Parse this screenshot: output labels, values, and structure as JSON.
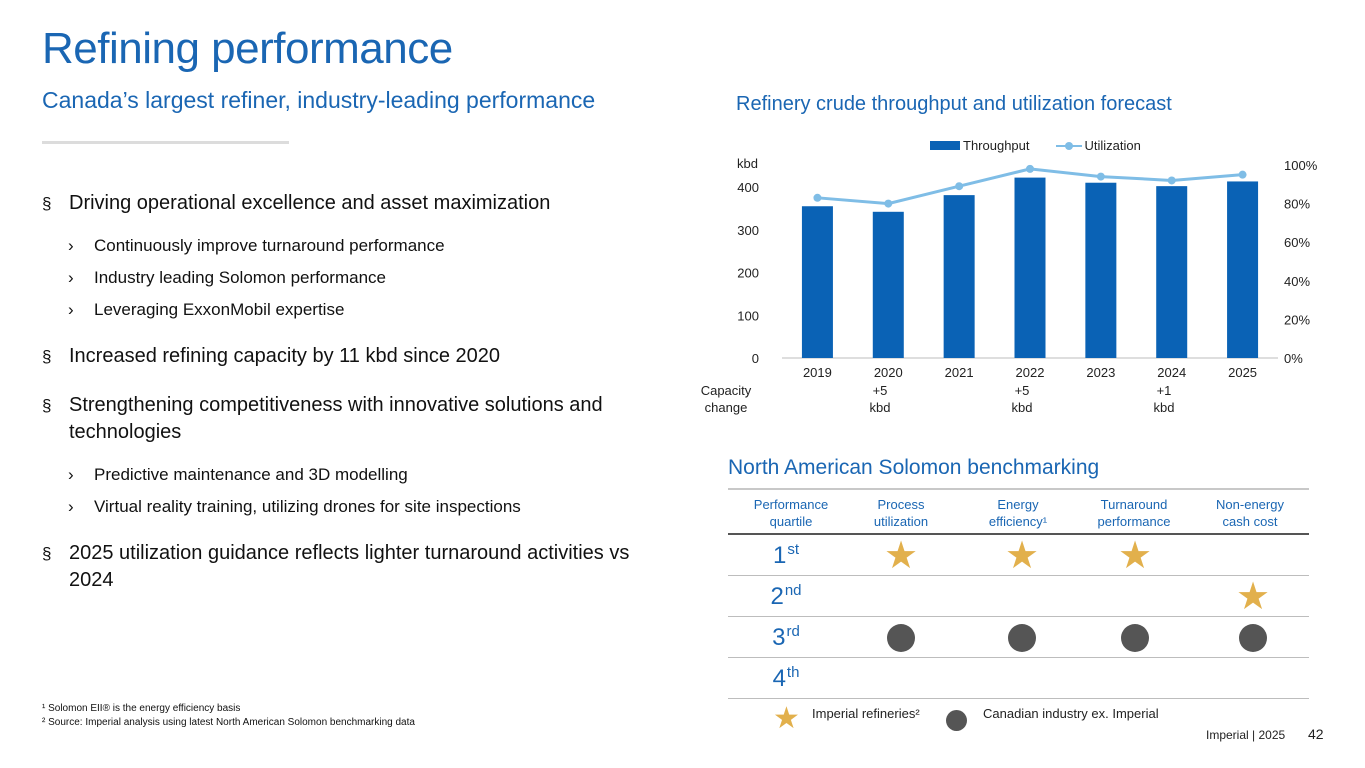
{
  "header": {
    "title": "Refining performance",
    "subtitle": "Canada’s largest refiner, industry-leading performance"
  },
  "bullets": [
    {
      "text": "Driving operational excellence and asset maximization",
      "subs": [
        "Continuously improve turnaround performance",
        "Industry leading Solomon performance",
        "Leveraging ExxonMobil expertise"
      ]
    },
    {
      "text": "Increased refining capacity by 11 kbd since 2020",
      "subs": []
    },
    {
      "text": "Strengthening competitiveness with innovative solutions and technologies",
      "subs": [
        "Predictive maintenance and 3D modelling",
        "Virtual reality training, utilizing drones for site inspections"
      ]
    },
    {
      "text": "2025 utilization guidance reflects lighter turnaround activities vs 2024",
      "subs": []
    }
  ],
  "bullet_mark": "§",
  "sub_mark": "›",
  "footnotes": {
    "f1": "¹ Solomon EII® is the energy efficiency basis",
    "f2": "² Source: Imperial analysis using latest North American Solomon benchmarking data"
  },
  "chart_data": {
    "type": "bar",
    "title": "Refinery crude throughput and utilization forecast",
    "categories": [
      "2019",
      "2020",
      "2021",
      "2022",
      "2023",
      "2024",
      "2025"
    ],
    "series": [
      {
        "name": "Throughput",
        "type": "bar",
        "axis": "left",
        "values": [
          355,
          342,
          381,
          422,
          410,
          402,
          413
        ]
      },
      {
        "name": "Utilization",
        "type": "line",
        "axis": "right",
        "values": [
          83,
          80,
          89,
          98,
          94,
          92,
          95
        ]
      }
    ],
    "ylabel": "kbd",
    "ylim": [
      0,
      400
    ],
    "yticks": [
      "0",
      "100",
      "200",
      "300",
      "400"
    ],
    "y2lim": [
      0,
      100
    ],
    "y2ticks": [
      "0%",
      "20%",
      "40%",
      "60%",
      "80%",
      "100%"
    ],
    "legend_position": "top",
    "capacity_label": [
      "Capacity",
      "change"
    ],
    "capacity_change": [
      [
        "",
        ""
      ],
      [
        "+5",
        "kbd"
      ],
      [
        "",
        ""
      ],
      [
        "+5",
        "kbd"
      ],
      [
        "",
        ""
      ],
      [
        "+1",
        "kbd"
      ],
      [
        "",
        ""
      ]
    ],
    "colors": {
      "bar": "#0a62b5",
      "line": "#7fbde6"
    }
  },
  "solomon": {
    "title": "North American Solomon benchmarking",
    "headers": [
      [
        "Performance",
        "quartile"
      ],
      [
        "Process",
        "utilization"
      ],
      [
        "Energy",
        "efficiency¹"
      ],
      [
        "Turnaround",
        "performance"
      ],
      [
        "Non-energy",
        "cash cost"
      ]
    ],
    "rows": [
      {
        "num": "1",
        "suffix": "st",
        "marks": [
          "star",
          "star",
          "star",
          ""
        ]
      },
      {
        "num": "2",
        "suffix": "nd",
        "marks": [
          "",
          "",
          "",
          "star"
        ]
      },
      {
        "num": "3",
        "suffix": "rd",
        "marks": [
          "dot",
          "dot",
          "dot",
          "dot"
        ]
      },
      {
        "num": "4",
        "suffix": "th",
        "marks": [
          "",
          "",
          "",
          ""
        ]
      }
    ],
    "legend": {
      "star": "Imperial refineries²",
      "dot": "Canadian industry ex. Imperial"
    },
    "colors": {
      "star": "#e2b04c",
      "dot": "#555555"
    }
  },
  "footer": {
    "brand": "Imperial  |  2025",
    "page": "42"
  }
}
